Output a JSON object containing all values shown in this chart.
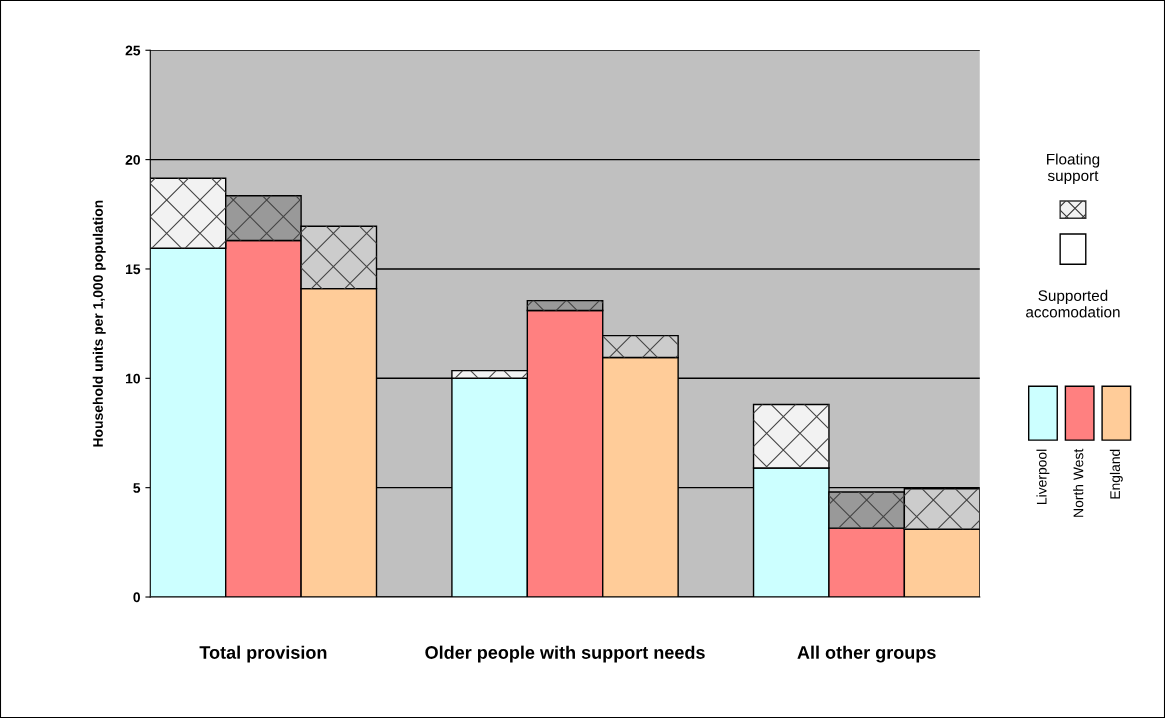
{
  "chart_data": {
    "type": "bar",
    "stacked": true,
    "ylabel": "Household units per 1,000 population",
    "categories": [
      null,
      "Total provision",
      null,
      null,
      null,
      "Older people with support needs",
      null,
      null,
      null,
      "All other groups",
      null
    ],
    "series": [
      {
        "name": "Supported accomodation",
        "color": "#ffffff",
        "colors": [
          "#ccffff",
          "#ff8080",
          "#ffcc99",
          null,
          "#ccffff",
          "#ff8080",
          "#ffcc99",
          null,
          "#ccffff",
          "#ff8080",
          "#ffcc99"
        ],
        "values": [
          15.95,
          16.3,
          14.1,
          null,
          10.0,
          13.1,
          10.95,
          null,
          5.9,
          3.15,
          3.1
        ]
      },
      {
        "name": "Floating support",
        "color": "#f2f2f2",
        "colors": [
          "#f2f2f2",
          "#999999",
          "#cccccc",
          null,
          "#f2f2f2",
          "#999999",
          "#cccccc",
          null,
          "#f2f2f2",
          "#999999",
          "#cccccc"
        ],
        "values": [
          3.2,
          2.05,
          2.85,
          null,
          0.35,
          0.45,
          1.0,
          null,
          2.9,
          1.65,
          1.85
        ]
      }
    ],
    "annotations": [
      "Liverpool",
      "North West",
      "England"
    ],
    "ylim": [
      0,
      25
    ],
    "yticks": [
      0,
      5,
      10,
      15,
      20,
      25
    ],
    "grid": "y",
    "legend": "right"
  }
}
